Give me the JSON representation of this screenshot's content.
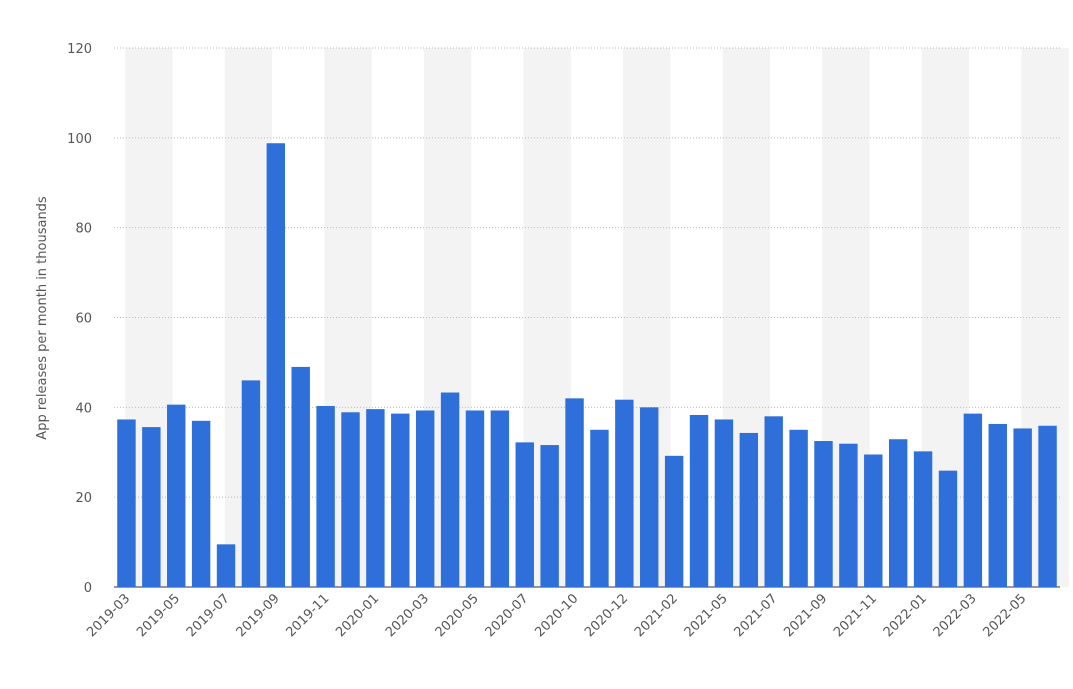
{
  "chart_data": {
    "type": "bar",
    "y_label": "App releases per month in thousands",
    "categories": [
      "2019-03",
      null,
      "2019-05",
      null,
      "2019-07",
      null,
      "2019-09",
      null,
      "2019-11",
      null,
      "2020-01",
      null,
      "2020-03",
      null,
      "2020-05",
      null,
      "2020-07",
      null,
      "2020-10",
      null,
      "2020-12",
      null,
      "2021-02",
      null,
      "2021-05",
      null,
      "2021-07",
      null,
      "2021-09",
      null,
      "2021-11",
      null,
      "2022-01",
      null,
      "2022-03",
      null,
      "2022-05",
      null
    ],
    "values": [
      37.3,
      35.6,
      40.6,
      37.0,
      9.5,
      46.0,
      98.8,
      49.0,
      40.3,
      38.9,
      39.6,
      38.6,
      39.3,
      43.3,
      39.3,
      39.3,
      32.2,
      31.6,
      42.0,
      35.0,
      41.7,
      40.0,
      29.2,
      38.3,
      37.3,
      34.3,
      38.0,
      35.0,
      32.5,
      31.9,
      29.5,
      32.9,
      30.2,
      25.9,
      38.6,
      36.3,
      35.3,
      35.9
    ],
    "color": "#2f6fd9",
    "ylim": [
      0,
      120
    ],
    "yticks": [
      0,
      20,
      40,
      60,
      80,
      100,
      120
    ],
    "grid": true
  }
}
